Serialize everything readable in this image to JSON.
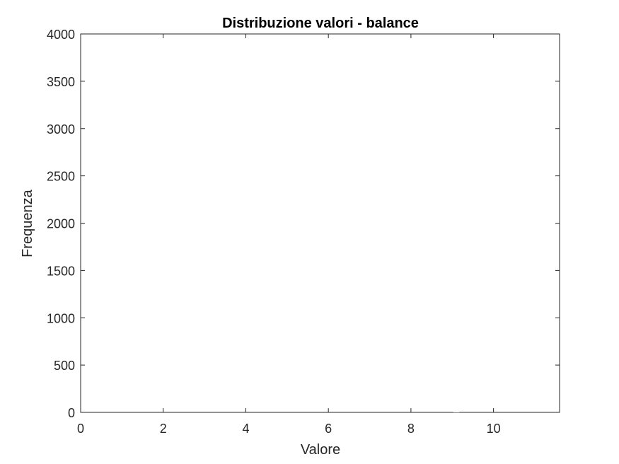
{
  "chart_data": {
    "type": "bar",
    "title": "Distribuzione valori - balance",
    "xlabel": "Valore",
    "ylabel": "Frequenza",
    "xlim": [
      0,
      11.6
    ],
    "ylim": [
      0,
      4000
    ],
    "xticks": [
      0,
      2,
      4,
      6,
      8,
      10
    ],
    "xtick_labels": [
      "0",
      "2",
      "4",
      "6",
      "8",
      "10"
    ],
    "yticks": [
      0,
      500,
      1000,
      1500,
      2000,
      2500,
      3000,
      3500,
      4000
    ],
    "ytick_labels": [
      "0",
      "500",
      "1000",
      "1500",
      "2000",
      "2500",
      "3000",
      "3500",
      "4000"
    ],
    "grid": false,
    "box": true,
    "bar_color": "#e6e6e6",
    "series": [
      {
        "bins": [
          {
            "x": 9.1,
            "value": 8
          }
        ]
      }
    ]
  }
}
